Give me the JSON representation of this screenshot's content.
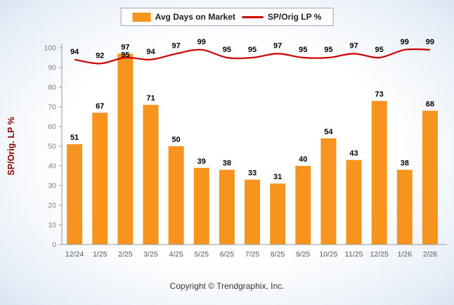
{
  "legend": {
    "bar_label": "Avg Days on Market",
    "line_label": "SP/Orig LP %"
  },
  "footer": {
    "copyright": "Copyright © Trendgraphix, Inc."
  },
  "colors": {
    "bar": "#F7941E",
    "line": "#CC0000",
    "axis": "#999999",
    "tick_label": "#808080",
    "x_label": "#555555",
    "value_label": "#000000",
    "ylabel_color": "#8B0000"
  },
  "chart_data": {
    "type": "bar",
    "subtype": "bar+line combo",
    "categories": [
      "12/24",
      "1/25",
      "2/25",
      "3/25",
      "4/25",
      "5/25",
      "6/25",
      "7/25",
      "8/25",
      "9/25",
      "10/25",
      "11/25",
      "12/25",
      "1/26",
      "2/26"
    ],
    "series": [
      {
        "name": "Avg Days on Market",
        "type": "bar",
        "values": [
          51,
          67,
          97,
          71,
          50,
          39,
          38,
          33,
          31,
          40,
          54,
          43,
          73,
          38,
          68
        ]
      },
      {
        "name": "SP/Orig LP %",
        "type": "line",
        "values": [
          94,
          92,
          95,
          94,
          97,
          99,
          95,
          95,
          97,
          95,
          95,
          97,
          95,
          99,
          99
        ]
      }
    ],
    "title": "",
    "xlabel": "",
    "ylabel": "SP/Orig. LP %",
    "ylim": [
      0,
      100
    ],
    "ytick_step": 10,
    "grid": false,
    "legend_position": "top-center"
  }
}
